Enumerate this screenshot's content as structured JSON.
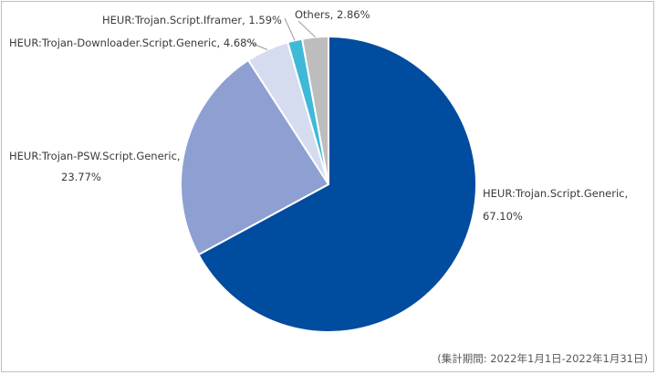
{
  "chart_data": {
    "type": "pie",
    "title": "",
    "slices": [
      {
        "name": "HEUR:Trojan.Script.Generic",
        "value": 67.1,
        "display": "67.10%",
        "color": "#004C9F"
      },
      {
        "name": "HEUR:Trojan-PSW.Script.Generic",
        "value": 23.77,
        "display": "23.77%",
        "color": "#8EA0D2"
      },
      {
        "name": "HEUR:Trojan-Downloader.Script.Generic",
        "value": 4.68,
        "display": "4.68%",
        "color": "#D6DCF0"
      },
      {
        "name": "HEUR:Trojan.Script.Iframer",
        "value": 1.59,
        "display": "1.59%",
        "color": "#3EB9D8"
      },
      {
        "name": "Others",
        "value": 2.86,
        "display": "2.86%",
        "color": "#BDBDBD"
      }
    ],
    "start_angle": "12 o'clock",
    "direction": "clockwise",
    "legend": "none (leader-line labels)"
  },
  "note": "(集計期間: 2022年1月1日-2022年1月31日)"
}
